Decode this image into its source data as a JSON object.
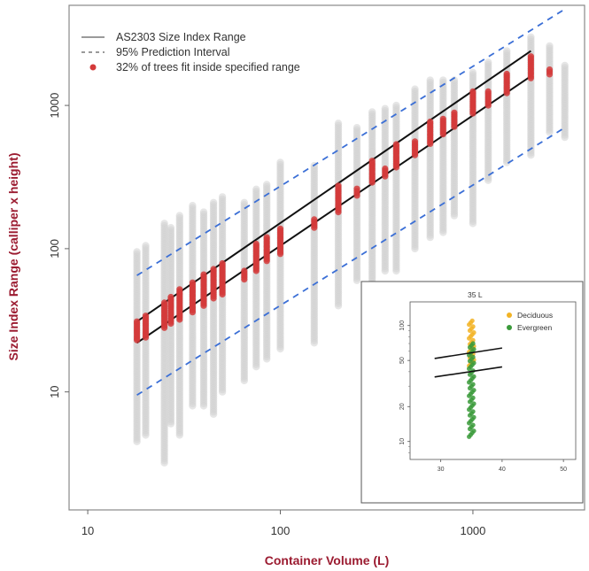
{
  "chart_data": [
    {
      "type": "scatter",
      "title": "",
      "xlabel": "Container Volume (L)",
      "ylabel": "Size Index Range (calliper x height)",
      "x_scale": "log",
      "y_scale": "log",
      "xlim": [
        8,
        3800
      ],
      "ylim": [
        1.5,
        5000
      ],
      "x_ticks": [
        10,
        100,
        1000
      ],
      "x_tick_labels": [
        "10",
        "100",
        "1000"
      ],
      "y_ticks": [
        10,
        100,
        1000
      ],
      "y_tick_labels": [
        "10",
        "100",
        "1000"
      ],
      "grid": false,
      "legend_position": "top-left",
      "legend": [
        {
          "label": "AS2303 Size Index Range",
          "marker": "line",
          "color": "#9a9a9a"
        },
        {
          "label": "95% Prediction Interval",
          "marker": "dashed",
          "color": "#9a9a9a"
        },
        {
          "label": "32% of trees fit inside specified range",
          "marker": "dot",
          "color": "#d43a3a"
        }
      ],
      "lines": {
        "as2303_upper": {
          "x": [
            18,
            2000
          ],
          "y": [
            31,
            2400
          ],
          "color": "#111111"
        },
        "as2303_lower": {
          "x": [
            18,
            2000
          ],
          "y": [
            22,
            1600
          ],
          "color": "#111111"
        },
        "pi_upper": {
          "x": [
            18,
            3000
          ],
          "y": [
            65,
            4700
          ],
          "color": "#3b6fd6"
        },
        "pi_lower": {
          "x": [
            18,
            3000
          ],
          "y": [
            9.5,
            700
          ],
          "color": "#3b6fd6"
        }
      },
      "container_volumes": [
        18,
        20,
        25,
        27,
        30,
        35,
        40,
        45,
        50,
        65,
        75,
        85,
        100,
        150,
        200,
        250,
        300,
        350,
        400,
        500,
        600,
        700,
        800,
        1000,
        1200,
        1500,
        2000,
        2500,
        3000
      ],
      "series": [
        {
          "name": "All trees",
          "color": "#d2d2d2",
          "ranges": [
            [
              18,
              4.5,
              95
            ],
            [
              20,
              5,
              105
            ],
            [
              25,
              3.2,
              150
            ],
            [
              27,
              6,
              140
            ],
            [
              30,
              5,
              170
            ],
            [
              35,
              8,
              200
            ],
            [
              40,
              8,
              180
            ],
            [
              45,
              7,
              210
            ],
            [
              50,
              10,
              230
            ],
            [
              65,
              12,
              210
            ],
            [
              75,
              15,
              260
            ],
            [
              85,
              17,
              280
            ],
            [
              100,
              20,
              400
            ],
            [
              150,
              22,
              380
            ],
            [
              200,
              40,
              750
            ],
            [
              250,
              60,
              700
            ],
            [
              300,
              55,
              900
            ],
            [
              350,
              70,
              950
            ],
            [
              400,
              70,
              1000
            ],
            [
              500,
              100,
              1300
            ],
            [
              600,
              120,
              1500
            ],
            [
              700,
              130,
              1500
            ],
            [
              800,
              170,
              1500
            ],
            [
              1000,
              150,
              1700
            ],
            [
              1200,
              300,
              2000
            ],
            [
              1500,
              400,
              2400
            ],
            [
              2000,
              450,
              3000
            ],
            [
              2500,
              650,
              2600
            ],
            [
              3000,
              600,
              1900
            ]
          ]
        },
        {
          "name": "32% of trees fit inside specified range",
          "color": "#d43a3a",
          "ranges": [
            [
              18,
              23,
              31
            ],
            [
              20,
              24,
              34
            ],
            [
              25,
              28,
              42
            ],
            [
              27,
              30,
              46
            ],
            [
              30,
              32,
              52
            ],
            [
              35,
              36,
              58
            ],
            [
              40,
              40,
              66
            ],
            [
              45,
              45,
              72
            ],
            [
              50,
              48,
              79
            ],
            [
              65,
              61,
              70
            ],
            [
              75,
              70,
              108
            ],
            [
              85,
              82,
              120
            ],
            [
              100,
              92,
              138
            ],
            [
              150,
              140,
              160
            ],
            [
              200,
              180,
              275
            ],
            [
              250,
              235,
              262
            ],
            [
              300,
              290,
              410
            ],
            [
              350,
              320,
              362
            ],
            [
              400,
              370,
              535
            ],
            [
              500,
              450,
              560
            ],
            [
              600,
              540,
              770
            ],
            [
              700,
              630,
              805
            ],
            [
              800,
              710,
              890
            ],
            [
              1000,
              880,
              1250
            ],
            [
              1200,
              1000,
              1250
            ],
            [
              1500,
              1220,
              1660
            ],
            [
              2000,
              1550,
              2200
            ],
            [
              2500,
              1650,
              1780
            ]
          ]
        }
      ]
    },
    {
      "type": "scatter",
      "title": "35 L",
      "xlabel": "",
      "ylabel": "",
      "x_ticks": [
        30,
        40,
        50
      ],
      "x_tick_labels": [
        "30",
        "40",
        "50"
      ],
      "xlim": [
        25,
        52
      ],
      "y_ticks": [
        10,
        20,
        50,
        100
      ],
      "y_tick_labels": [
        "10",
        "20",
        "50",
        "100"
      ],
      "ylim": [
        7,
        160
      ],
      "y_scale": "log",
      "legend_position": "top-right",
      "legend": [
        {
          "label": "Deciduous",
          "color": "#f2b324"
        },
        {
          "label": "Evergreen",
          "color": "#3a9a3a"
        }
      ],
      "lines": {
        "as2303_upper": {
          "x": [
            29,
            40
          ],
          "y": [
            52,
            64
          ],
          "color": "#111111"
        },
        "as2303_lower": {
          "x": [
            29,
            40
          ],
          "y": [
            36,
            44
          ],
          "color": "#111111"
        }
      },
      "series": [
        {
          "name": "Deciduous",
          "x": 35,
          "y_range": [
            45,
            110
          ],
          "color": "#f2b324"
        },
        {
          "name": "Evergreen",
          "x": 35,
          "y_range": [
            11,
            70
          ],
          "color": "#3a9a3a"
        }
      ]
    }
  ]
}
